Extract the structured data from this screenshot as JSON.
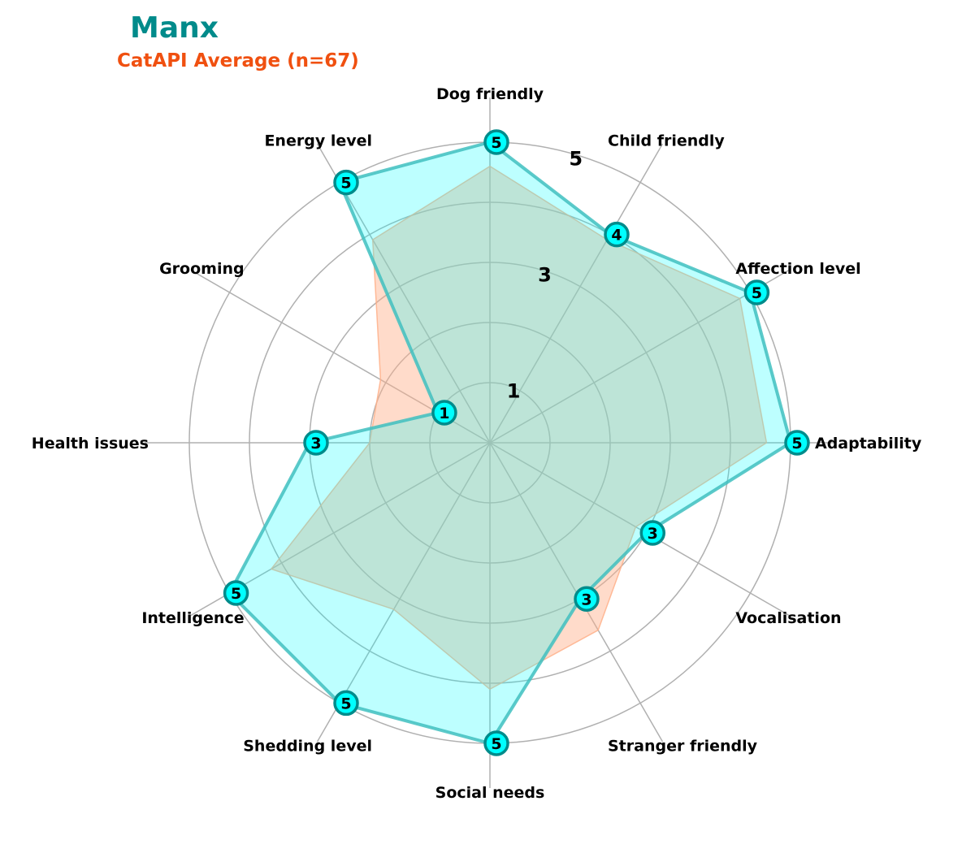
{
  "header": {
    "title": "Manx",
    "subtitle": "CatAPI Average (n=67)"
  },
  "chart_data": {
    "type": "radar",
    "categories": [
      "Adaptability",
      "Affection level",
      "Child friendly",
      "Dog friendly",
      "Energy level",
      "Grooming",
      "Health issues",
      "Intelligence",
      "Shedding level",
      "Social needs",
      "Stranger friendly",
      "Vocalisation"
    ],
    "series": [
      {
        "name": "Manx",
        "values": [
          5,
          5,
          4,
          5,
          5,
          1,
          3,
          5,
          5,
          5,
          3,
          3
        ],
        "color": "#00ffff",
        "edge": "#40c0c0"
      },
      {
        "name": "CatAPI Average (n=67)",
        "values": [
          4.6,
          4.8,
          3.9,
          4.6,
          3.9,
          2.1,
          2.0,
          4.2,
          3.2,
          4.1,
          3.6,
          2.8
        ],
        "color": "#ffb08a",
        "edge": "#ffb08a"
      }
    ],
    "rlim": [
      0,
      5
    ],
    "ring_ticks": [
      1,
      2,
      3,
      4,
      5
    ],
    "ring_labels": [
      "1",
      "3",
      "5"
    ],
    "colors": {
      "grid": "#b0b0b0",
      "marker_fill": "#00ffff",
      "marker_edge": "#008b8b"
    }
  }
}
